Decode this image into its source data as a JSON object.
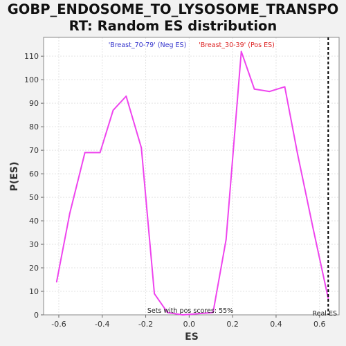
{
  "chart_data": {
    "type": "line",
    "title_lines": [
      "GOBP_ENDOSOME_TO_LYSOSOME_TRANSPO",
      "RT: Random ES distribution"
    ],
    "xlabel": "ES",
    "ylabel": "P(ES)",
    "xlim": [
      -0.67,
      0.69
    ],
    "ylim": [
      0,
      118
    ],
    "xticks": [
      -0.6,
      -0.4,
      -0.2,
      0.0,
      0.2,
      0.4,
      0.6
    ],
    "xtick_labels": [
      "-0.6",
      "-0.4",
      "-0.2",
      "0.0",
      "0.2",
      "0.4",
      "0.6"
    ],
    "yticks": [
      0,
      10,
      20,
      30,
      40,
      50,
      60,
      70,
      80,
      90,
      100,
      110
    ],
    "ytick_labels": [
      "0",
      "10",
      "20",
      "30",
      "40",
      "50",
      "60",
      "70",
      "80",
      "90",
      "100",
      "110"
    ],
    "grid": true,
    "legend_neg": "'Breast_70-79' (Neg ES)",
    "legend_pos": "'Breast_30-39' (Pos ES)",
    "annotation_pos_scores": "Sets with pos scores: 55%",
    "real_es_label": "Real ES",
    "real_es": 0.64,
    "series": [
      {
        "color": "#ee44ee",
        "x": [
          -0.61,
          -0.55,
          -0.48,
          -0.41,
          -0.35,
          -0.29,
          -0.22,
          -0.16,
          -0.1,
          -0.03,
          0.11,
          0.17,
          0.24,
          0.3,
          0.37,
          0.44,
          0.5,
          0.57,
          0.64
        ],
        "y": [
          14,
          43,
          69,
          69,
          87,
          93,
          71,
          9,
          1,
          0,
          1,
          32,
          112,
          96,
          95,
          97,
          68,
          37,
          7
        ]
      }
    ],
    "colors": {
      "neg_legend": "#3333cc",
      "pos_legend": "#dd2222",
      "real_es_line": "#000000",
      "plot_bg": "#ffffff",
      "grid": "#e3e3e3"
    }
  }
}
